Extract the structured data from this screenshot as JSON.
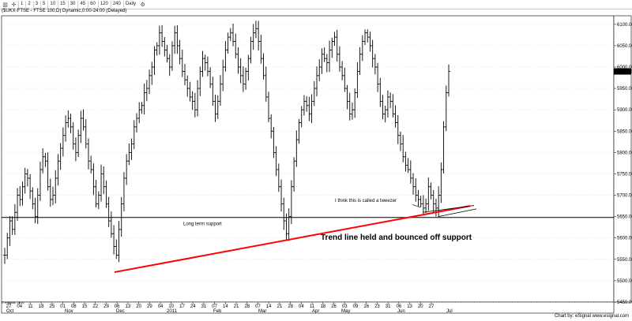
{
  "toolbar": {
    "icons": [
      "chart-icon",
      "crosshair-icon"
    ],
    "buttons": [
      "1",
      "2",
      "3",
      "5",
      "10",
      "15",
      "30",
      "45",
      "60",
      "120",
      "240",
      "Daily"
    ]
  },
  "chart_title": "($UKX-FTSE - FTSE 100,D) Dynamic,0:00-24:00 (Delayed)",
  "footer": "Chart by: eSignal www.esignal.com",
  "copyright": "© eSignal, 2010",
  "annotations": {
    "support_label": "Long term support",
    "tweezer_label": "I think this is called a tweezer",
    "trend_label": "Trend line held and bounced off support"
  },
  "colors": {
    "trend": "#ff0000",
    "bars": "#000000",
    "grid": "#c0c0c0",
    "price_badge_bg": "#000000",
    "price_badge_fg": "#ffffff"
  },
  "chart_data": {
    "type": "ohlc",
    "title": "($UKX-FTSE - FTSE 100,D) Dynamic,0:00-24:00 (Delayed)",
    "ylim": [
      5450,
      6120
    ],
    "y_ticks": [
      6100,
      6050,
      6000,
      5950,
      5900,
      5850,
      5800,
      5750,
      5700,
      5650,
      5600,
      5550,
      5500,
      5450
    ],
    "y_tick_labels": [
      "6100.00",
      "6050.00",
      "6000.00",
      "5950.00",
      "5900.00",
      "5850.00",
      "5800.00",
      "5750.00",
      "5700.00",
      "5650.00",
      "5600.00",
      "5550.00",
      "5500.00",
      "5450.00"
    ],
    "last_price": 5989.76,
    "last_price_label": "5989.76",
    "x_day_labels": [
      "27",
      "04",
      "11",
      "18",
      "25",
      "01",
      "08",
      "15",
      "22",
      "29",
      "06",
      "13",
      "20",
      "29",
      "04",
      "10",
      "17",
      "24",
      "31",
      "07",
      "14",
      "21",
      "28",
      "07",
      "14",
      "21",
      "28",
      "04",
      "11",
      "18",
      "26",
      "03",
      "09",
      "16",
      "23",
      "31",
      "06",
      "13",
      "20",
      "27"
    ],
    "x_month_labels": [
      "Oct",
      "Nov",
      "Dec",
      "2011",
      "Feb",
      "Mar",
      "Apr",
      "May",
      "Jun",
      "Jul"
    ],
    "support_level": 5648,
    "trend_line": {
      "from": [
        "29 Nov 2010",
        5520
      ],
      "to": [
        "30 Jun 2011",
        5675
      ]
    },
    "closes": [
      5560,
      5600,
      5640,
      5620,
      5660,
      5700,
      5690,
      5720,
      5750,
      5740,
      5710,
      5680,
      5650,
      5700,
      5760,
      5790,
      5780,
      5720,
      5690,
      5700,
      5740,
      5780,
      5810,
      5840,
      5870,
      5880,
      5860,
      5820,
      5800,
      5840,
      5880,
      5860,
      5820,
      5780,
      5760,
      5720,
      5680,
      5700,
      5750,
      5720,
      5680,
      5640,
      5610,
      5580,
      5560,
      5620,
      5680,
      5740,
      5780,
      5800,
      5820,
      5860,
      5880,
      5900,
      5910,
      5940,
      5950,
      5980,
      6000,
      6040,
      6050,
      6080,
      6060,
      6040,
      6020,
      6000,
      6050,
      6080,
      6050,
      6020,
      5990,
      5970,
      5950,
      5930,
      5920,
      5900,
      5950,
      5990,
      6020,
      6010,
      5990,
      5960,
      5920,
      5890,
      5920,
      5960,
      6000,
      6040,
      6070,
      6080,
      6060,
      6030,
      6000,
      5980,
      5960,
      5990,
      6020,
      6060,
      6080,
      6090,
      6060,
      6020,
      5980,
      5930,
      5880,
      5850,
      5800,
      5760,
      5720,
      5680,
      5640,
      5610,
      5650,
      5720,
      5780,
      5830,
      5870,
      5900,
      5920,
      5910,
      5890,
      5920,
      5950,
      5980,
      6000,
      6030,
      6020,
      6010,
      6040,
      6060,
      6070,
      6030,
      6000,
      5980,
      5950,
      5920,
      5890,
      5900,
      5940,
      5990,
      6030,
      6060,
      6080,
      6070,
      6050,
      6020,
      6000,
      5960,
      5920,
      5890,
      5900,
      5930,
      5920,
      5890,
      5870,
      5840,
      5820,
      5790,
      5770,
      5760,
      5740,
      5720,
      5700,
      5690,
      5680,
      5670,
      5680,
      5720,
      5700,
      5680,
      5670,
      5700,
      5760,
      5860,
      5940,
      5989.76
    ]
  }
}
